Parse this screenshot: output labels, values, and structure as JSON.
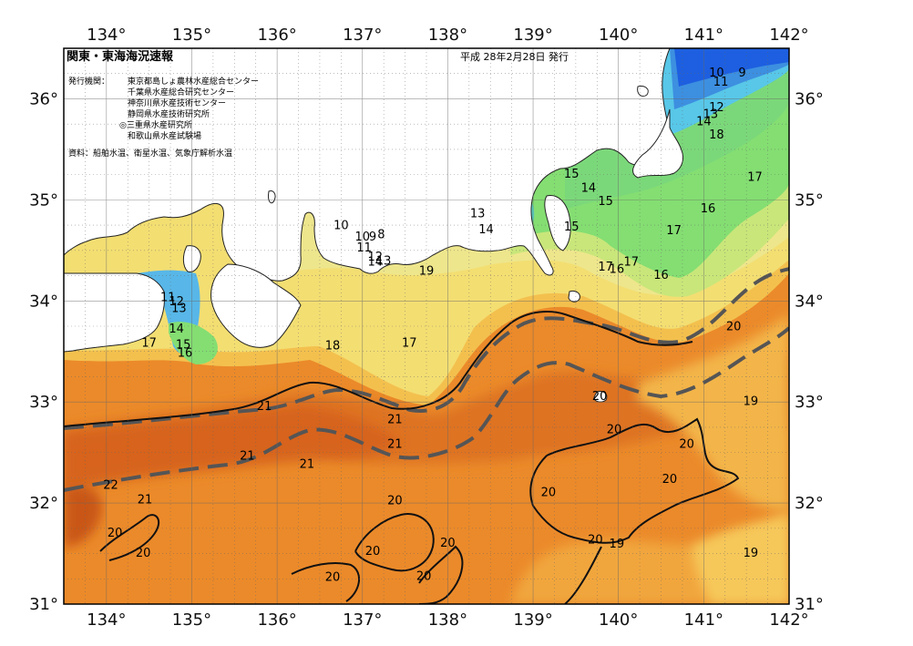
{
  "header": {
    "title": "関東・東海海況速報",
    "date": "平成 28年2月28日 発行",
    "issuer_label": "発行機関：",
    "issuers": [
      "東京都島しょ農林水産総合センター",
      "千葉県水産総合研究センター",
      "神奈川県水産技術センター",
      "静岡県水産技術研究所",
      "◎三重県水産研究所",
      "和歌山県水産試験場"
    ],
    "source": "資料：船舶水温、衛星水温、気象庁解析水温"
  },
  "axes": {
    "lon_ticks": [
      "134°",
      "135°",
      "136°",
      "137°",
      "138°",
      "139°",
      "140°",
      "141°",
      "142°"
    ],
    "lat_ticks": [
      "36°",
      "35°",
      "34°",
      "33°",
      "32°",
      "31°"
    ],
    "lon_range": [
      133.5,
      142.0
    ],
    "lat_range": [
      31.0,
      36.5
    ]
  },
  "colors": {
    "sea_warm_dark": "#d7641d",
    "sea_warm": "#eb8a2a",
    "sea_orange_light": "#f1a63c",
    "sea_yellow_orange": "#f6c34f",
    "sea_yellow": "#f3de72",
    "sea_pale_yellow": "#eee68c",
    "sea_light_green": "#c9e67a",
    "sea_green": "#84de72",
    "sea_teal": "#5bd6b0",
    "sea_cyan": "#58c7e8",
    "sea_blue": "#3d8fe0",
    "sea_deep_blue": "#1d5fe0",
    "land": "#ffffff",
    "kuroshio_axis": "#555555"
  },
  "isotherm_labels": [
    {
      "text": "10",
      "lon": 141.15,
      "lat": 36.25
    },
    {
      "text": "9",
      "lon": 141.45,
      "lat": 36.25
    },
    {
      "text": "11",
      "lon": 141.2,
      "lat": 36.16
    },
    {
      "text": "12",
      "lon": 141.15,
      "lat": 35.91
    },
    {
      "text": "13",
      "lon": 141.08,
      "lat": 35.84
    },
    {
      "text": "14",
      "lon": 141.0,
      "lat": 35.77
    },
    {
      "text": "18",
      "lon": 141.15,
      "lat": 35.64
    },
    {
      "text": "15",
      "lon": 139.45,
      "lat": 35.25
    },
    {
      "text": "14",
      "lon": 139.65,
      "lat": 35.11
    },
    {
      "text": "15",
      "lon": 139.85,
      "lat": 34.98
    },
    {
      "text": "15",
      "lon": 139.45,
      "lat": 34.73
    },
    {
      "text": "17",
      "lon": 141.6,
      "lat": 35.22
    },
    {
      "text": "16",
      "lon": 141.05,
      "lat": 34.91
    },
    {
      "text": "17",
      "lon": 140.65,
      "lat": 34.69
    },
    {
      "text": "17",
      "lon": 140.15,
      "lat": 34.38
    },
    {
      "text": "16",
      "lon": 140.5,
      "lat": 34.25
    },
    {
      "text": "17",
      "lon": 139.85,
      "lat": 34.33
    },
    {
      "text": "16",
      "lon": 139.98,
      "lat": 34.31
    },
    {
      "text": "13",
      "lon": 138.35,
      "lat": 34.86
    },
    {
      "text": "14",
      "lon": 138.45,
      "lat": 34.7
    },
    {
      "text": "10",
      "lon": 136.75,
      "lat": 34.74
    },
    {
      "text": "10",
      "lon": 137.0,
      "lat": 34.63
    },
    {
      "text": "9",
      "lon": 137.12,
      "lat": 34.63
    },
    {
      "text": "8",
      "lon": 137.22,
      "lat": 34.65
    },
    {
      "text": "11",
      "lon": 137.02,
      "lat": 34.52
    },
    {
      "text": "12",
      "lon": 137.15,
      "lat": 34.43
    },
    {
      "text": "14",
      "lon": 137.15,
      "lat": 34.38
    },
    {
      "text": "13",
      "lon": 137.25,
      "lat": 34.39
    },
    {
      "text": "19",
      "lon": 137.75,
      "lat": 34.29
    },
    {
      "text": "11",
      "lon": 134.72,
      "lat": 34.03
    },
    {
      "text": "12",
      "lon": 134.82,
      "lat": 33.99
    },
    {
      "text": "13",
      "lon": 134.85,
      "lat": 33.92
    },
    {
      "text": "14",
      "lon": 134.82,
      "lat": 33.72
    },
    {
      "text": "17",
      "lon": 134.5,
      "lat": 33.58
    },
    {
      "text": "15",
      "lon": 134.9,
      "lat": 33.56
    },
    {
      "text": "16",
      "lon": 134.92,
      "lat": 33.48
    },
    {
      "text": "18",
      "lon": 136.65,
      "lat": 33.55
    },
    {
      "text": "17",
      "lon": 137.55,
      "lat": 33.58
    },
    {
      "text": "20",
      "lon": 141.35,
      "lat": 33.74
    },
    {
      "text": "20",
      "lon": 139.78,
      "lat": 33.05
    },
    {
      "text": "19",
      "lon": 141.55,
      "lat": 33.0
    },
    {
      "text": "21",
      "lon": 135.85,
      "lat": 32.95
    },
    {
      "text": "21",
      "lon": 137.38,
      "lat": 32.82
    },
    {
      "text": "21",
      "lon": 137.38,
      "lat": 32.58
    },
    {
      "text": "21",
      "lon": 135.65,
      "lat": 32.46
    },
    {
      "text": "21",
      "lon": 136.35,
      "lat": 32.38
    },
    {
      "text": "20",
      "lon": 139.95,
      "lat": 32.72
    },
    {
      "text": "20",
      "lon": 140.8,
      "lat": 32.58
    },
    {
      "text": "20",
      "lon": 140.6,
      "lat": 32.23
    },
    {
      "text": "22",
      "lon": 134.05,
      "lat": 32.17
    },
    {
      "text": "21",
      "lon": 134.45,
      "lat": 32.03
    },
    {
      "text": "20",
      "lon": 137.38,
      "lat": 32.02
    },
    {
      "text": "20",
      "lon": 139.18,
      "lat": 32.1
    },
    {
      "text": "20",
      "lon": 134.1,
      "lat": 31.7
    },
    {
      "text": "20",
      "lon": 134.43,
      "lat": 31.5
    },
    {
      "text": "20",
      "lon": 137.12,
      "lat": 31.52
    },
    {
      "text": "20",
      "lon": 138.0,
      "lat": 31.6
    },
    {
      "text": "20",
      "lon": 139.73,
      "lat": 31.63
    },
    {
      "text": "19",
      "lon": 139.98,
      "lat": 31.59
    },
    {
      "text": "19",
      "lon": 141.55,
      "lat": 31.5
    },
    {
      "text": "20",
      "lon": 136.65,
      "lat": 31.26
    },
    {
      "text": "20",
      "lon": 137.72,
      "lat": 31.27
    }
  ]
}
